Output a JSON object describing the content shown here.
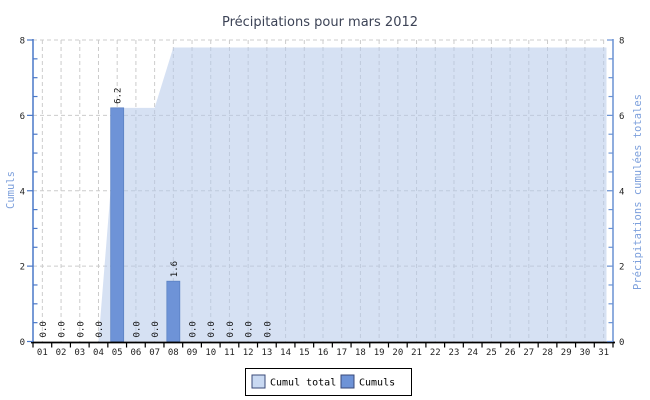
{
  "chart_data": {
    "type": "bar+area",
    "title": "Précipitations pour mars 2012",
    "categories": [
      "01",
      "02",
      "03",
      "04",
      "05",
      "06",
      "07",
      "08",
      "09",
      "10",
      "11",
      "12",
      "13",
      "14",
      "15",
      "16",
      "17",
      "18",
      "19",
      "20",
      "21",
      "22",
      "23",
      "24",
      "25",
      "26",
      "27",
      "28",
      "29",
      "30",
      "31"
    ],
    "y_axis_left": {
      "label": "Cumuls",
      "ticks": [
        0,
        2,
        4,
        6,
        8
      ],
      "range": [
        0,
        8
      ],
      "minor_step": 0.5
    },
    "y_axis_right": {
      "label": "Précipitations cumulées totales",
      "ticks": [
        0,
        2,
        4,
        6,
        8
      ],
      "range": [
        0,
        8
      ],
      "minor_step": 0.5
    },
    "grid": true,
    "legend_position": "bottom-center",
    "series": [
      {
        "name": "Cumul total",
        "type": "area",
        "color": "#b4c8ea",
        "opacity": 0.55,
        "values": [
          0,
          0,
          0,
          0,
          6.2,
          6.2,
          6.2,
          7.8,
          7.8,
          7.8,
          7.8,
          7.8,
          7.8,
          7.8,
          7.8,
          7.8,
          7.8,
          7.8,
          7.8,
          7.8,
          7.8,
          7.8,
          7.8,
          7.8,
          7.8,
          7.8,
          7.8,
          7.8,
          7.8,
          7.8,
          7.8
        ]
      },
      {
        "name": "Cumuls",
        "type": "bar",
        "color": "#6e93d7",
        "border": "#5a80c2",
        "values": [
          0,
          0,
          0,
          0,
          6.2,
          0,
          0,
          1.6,
          0,
          0,
          0,
          0,
          0,
          null,
          null,
          null,
          null,
          null,
          null,
          null,
          null,
          null,
          null,
          null,
          null,
          null,
          null,
          null,
          null,
          null,
          null
        ],
        "labels": [
          "0.0",
          "0.0",
          "0.0",
          "0.0",
          "6.2",
          "0.0",
          "0.0",
          "1.6",
          "0.0",
          "0.0",
          "0.0",
          "0.0",
          "0.0"
        ]
      }
    ],
    "legend": [
      {
        "label": "Cumul total",
        "color": "#c9d9f2"
      },
      {
        "label": "Cumuls",
        "color": "#6e93d7"
      }
    ]
  },
  "colors": {
    "background": "#ffffff",
    "grid": "#cccccc",
    "axis_left": "#4a78c8",
    "axis_right": "#6a92d4",
    "axis_x": "#000000",
    "title": "#3c4356",
    "axis_title": "#7da0dc",
    "tick_label": "#222222",
    "bar_label": "#111111",
    "legend_border": "#000000",
    "swatch_border": "#3a4a78"
  }
}
